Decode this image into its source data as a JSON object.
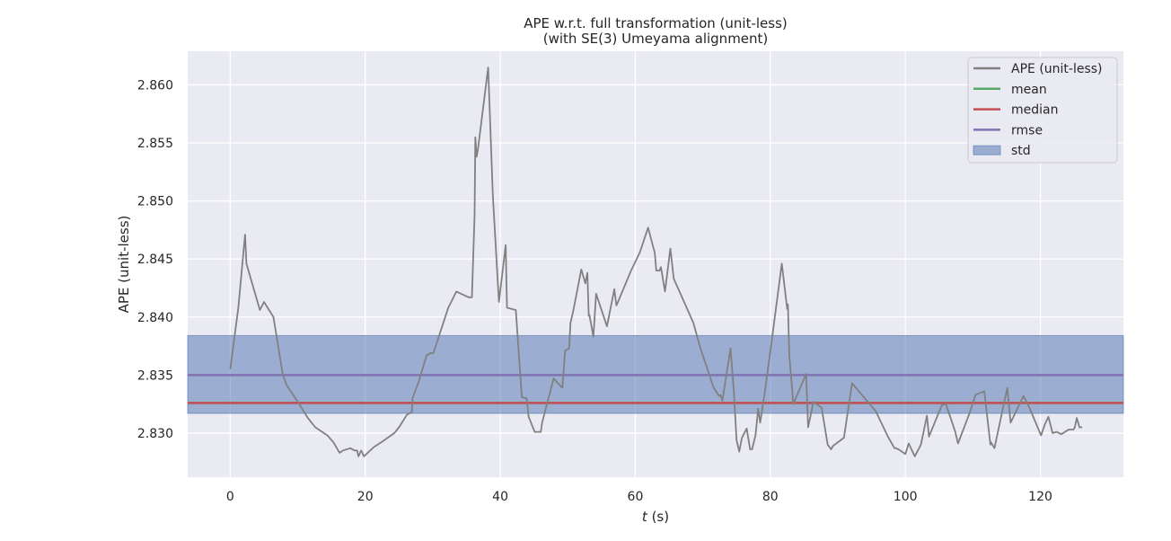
{
  "chart_data": {
    "type": "line",
    "title": "APE w.r.t. full transformation (unit-less)",
    "subtitle": "(with SE(3) Umeyama alignment)",
    "xlabel_italic": "t",
    "xlabel_rest": " (s)",
    "ylabel": "APE (unit-less)",
    "xlim": [
      -6.3,
      132.3
    ],
    "ylim": [
      2.8262,
      2.8629
    ],
    "xticks": [
      0,
      20,
      40,
      60,
      80,
      100,
      120
    ],
    "yticks": [
      2.83,
      2.835,
      2.84,
      2.845,
      2.85,
      2.855,
      2.86
    ],
    "xtick_labels": [
      "0",
      "20",
      "40",
      "60",
      "80",
      "100",
      "120"
    ],
    "ytick_labels": [
      "2.830",
      "2.835",
      "2.840",
      "2.845",
      "2.850",
      "2.855",
      "2.860"
    ],
    "grid": true,
    "background": "#eaeaf2",
    "legend_position": "top-right",
    "stats": {
      "mean": 2.8326,
      "median": 2.8326,
      "rmse": 2.835,
      "std_low": 2.8317,
      "std_high": 2.8384
    },
    "colors": {
      "ape": "#808080",
      "mean": "#55a868",
      "median": "#c44e52",
      "rmse": "#8172b2",
      "std_fill": "#4c72b0"
    },
    "legend": [
      {
        "label": "APE (unit-less)",
        "kind": "line",
        "color": "#808080"
      },
      {
        "label": "mean",
        "kind": "line",
        "color": "#55a868"
      },
      {
        "label": "median",
        "kind": "line",
        "color": "#c44e52"
      },
      {
        "label": "rmse",
        "kind": "line",
        "color": "#8172b2"
      },
      {
        "label": "std",
        "kind": "patch",
        "color": "#4c72b0"
      }
    ],
    "series": [
      {
        "name": "APE (unit-less)",
        "x": [
          0.0,
          1.2,
          2.2,
          2.4,
          4.4,
          5.0,
          6.4,
          7.8,
          8.4,
          10.0,
          11.5,
          12.6,
          14.4,
          15.3,
          16.2,
          16.7,
          17.8,
          18.4,
          18.8,
          19.0,
          19.4,
          19.8,
          21.3,
          22.6,
          24.3,
          25.0,
          26.2,
          26.9,
          27.0,
          27.9,
          29.1,
          29.7,
          30.1,
          32.3,
          33.5,
          35.3,
          35.8,
          36.2,
          36.3,
          36.5,
          36.7,
          38.2,
          38.9,
          39.8,
          40.8,
          41.0,
          42.3,
          43.2,
          43.9,
          44.2,
          45.1,
          46.0,
          46.2,
          47.9,
          49.2,
          49.6,
          50.2,
          50.4,
          50.8,
          52.0,
          52.6,
          52.9,
          53.1,
          53.2,
          53.8,
          54.2,
          55.8,
          56.9,
          57.2,
          57.5,
          59.3,
          60.7,
          61.9,
          62.9,
          63.1,
          63.6,
          63.8,
          64.4,
          65.2,
          65.7,
          68.6,
          69.6,
          71.6,
          72.4,
          72.6,
          72.9,
          74.1,
          74.6,
          75.0,
          75.4,
          75.8,
          76.5,
          77.0,
          77.3,
          77.8,
          78.2,
          78.5,
          79.2,
          80.1,
          81.7,
          82.5,
          82.6,
          82.8,
          83.4,
          85.3,
          85.6,
          86.4,
          86.8,
          87.6,
          88.5,
          89.0,
          89.3,
          90.9,
          92.1,
          95.6,
          97.5,
          98.4,
          98.6,
          99.0,
          100.0,
          100.5,
          101.4,
          102.3,
          103.2,
          103.5,
          105.4,
          106.0,
          107.4,
          107.8,
          109.5,
          110.4,
          111.7,
          112.6,
          112.7,
          113.2,
          115.1,
          115.6,
          117.5,
          118.3,
          120.1,
          120.7,
          121.2,
          121.8,
          122.4,
          123.1,
          124.2,
          124.9,
          125.1,
          125.4,
          125.8,
          126.2
        ],
        "y": [
          2.8355,
          2.8408,
          2.8471,
          2.8446,
          2.8406,
          2.8413,
          2.84,
          2.835,
          2.8341,
          2.8327,
          2.8313,
          2.8305,
          2.8298,
          2.8292,
          2.8283,
          2.8285,
          2.8287,
          2.8285,
          2.8285,
          2.828,
          2.8285,
          2.828,
          2.8288,
          2.8293,
          2.83,
          2.8305,
          2.8316,
          2.8318,
          2.833,
          2.8344,
          2.8367,
          2.8369,
          2.8369,
          2.8408,
          2.8422,
          2.8417,
          2.8417,
          2.8488,
          2.8555,
          2.8538,
          2.8545,
          2.8615,
          2.8505,
          2.8413,
          2.8462,
          2.8408,
          2.8406,
          2.8331,
          2.833,
          2.8314,
          2.8301,
          2.8301,
          2.8309,
          2.8347,
          2.8339,
          2.8371,
          2.8373,
          2.8395,
          2.8405,
          2.8441,
          2.8429,
          2.8438,
          2.8401,
          2.8402,
          2.8383,
          2.842,
          2.8392,
          2.8424,
          2.841,
          2.8414,
          2.8439,
          2.8456,
          2.8477,
          2.8455,
          2.844,
          2.844,
          2.8443,
          2.8422,
          2.8459,
          2.8433,
          2.8395,
          2.8374,
          2.8339,
          2.8332,
          2.8333,
          2.8328,
          2.8373,
          2.8336,
          2.8294,
          2.8284,
          2.8296,
          2.8304,
          2.8286,
          2.8286,
          2.8298,
          2.8321,
          2.8309,
          2.8336,
          2.8375,
          2.8446,
          2.8407,
          2.8411,
          2.8368,
          2.8325,
          2.8351,
          2.8305,
          2.8327,
          2.8325,
          2.8322,
          2.829,
          2.8286,
          2.8289,
          2.8296,
          2.8343,
          2.8319,
          2.8296,
          2.8287,
          2.8287,
          2.8286,
          2.8282,
          2.8291,
          2.828,
          2.829,
          2.8315,
          2.8297,
          2.8324,
          2.8325,
          2.8301,
          2.8291,
          2.8317,
          2.8333,
          2.8336,
          2.829,
          2.8292,
          2.8287,
          2.8339,
          2.8309,
          2.8332,
          2.8323,
          2.8298,
          2.8308,
          2.8314,
          2.83,
          2.8301,
          2.8299,
          2.8303,
          2.8303,
          2.8305,
          2.8313,
          2.8305,
          2.8305
        ]
      }
    ]
  }
}
